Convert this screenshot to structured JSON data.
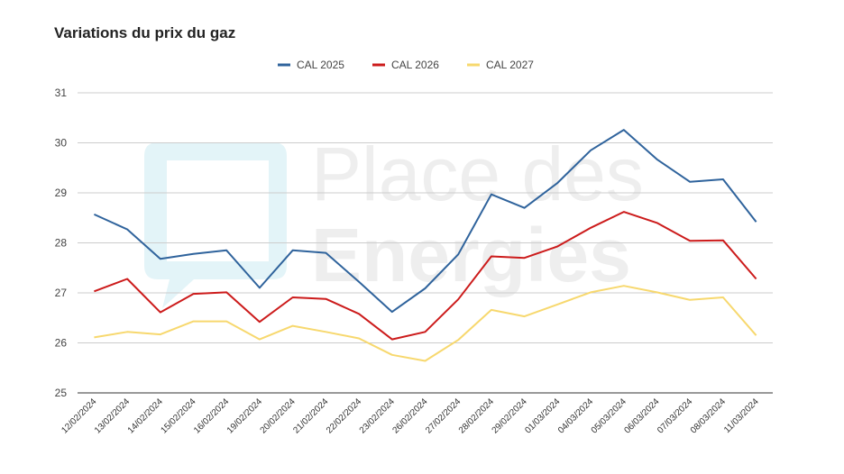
{
  "chart_data": {
    "type": "line",
    "title": "Variations du prix du gaz",
    "categories": [
      "12/02/2024",
      "13/02/2024",
      "14/02/2024",
      "15/02/2024",
      "16/02/2024",
      "19/02/2024",
      "20/02/2024",
      "21/02/2024",
      "22/02/2024",
      "23/02/2024",
      "26/02/2024",
      "27/02/2024",
      "28/02/2024",
      "29/02/2024",
      "01/03/2024",
      "04/03/2024",
      "05/03/2024",
      "06/03/2024",
      "07/03/2024",
      "08/03/2024",
      "11/03/2024"
    ],
    "series": [
      {
        "name": "CAL 2025",
        "color": "#2f639c",
        "values": [
          28.57,
          28.27,
          27.68,
          27.78,
          27.85,
          27.1,
          27.85,
          27.8,
          27.22,
          26.62,
          27.09,
          27.77,
          28.97,
          28.7,
          29.2,
          29.85,
          30.26,
          29.67,
          29.22,
          29.27,
          28.42
        ]
      },
      {
        "name": "CAL 2026",
        "color": "#cc1b1b",
        "values": [
          27.03,
          27.28,
          26.61,
          26.98,
          27.01,
          26.42,
          26.91,
          26.88,
          26.58,
          26.07,
          26.22,
          26.87,
          27.73,
          27.7,
          27.93,
          28.3,
          28.62,
          28.4,
          28.04,
          28.05,
          27.28
        ]
      },
      {
        "name": "CAL 2027",
        "color": "#f7d86e",
        "values": [
          26.11,
          26.22,
          26.17,
          26.43,
          26.43,
          26.07,
          26.34,
          26.22,
          26.09,
          25.76,
          25.64,
          26.06,
          26.66,
          26.53,
          26.77,
          27.01,
          27.14,
          27.01,
          26.86,
          26.91,
          26.15
        ]
      }
    ],
    "ylim": [
      25,
      31
    ],
    "yticks": [
      25,
      26,
      27,
      28,
      29,
      30,
      31
    ],
    "grid": true,
    "legend": "top-center"
  },
  "watermark": {
    "line1": "Place des",
    "line2": "Energies"
  }
}
